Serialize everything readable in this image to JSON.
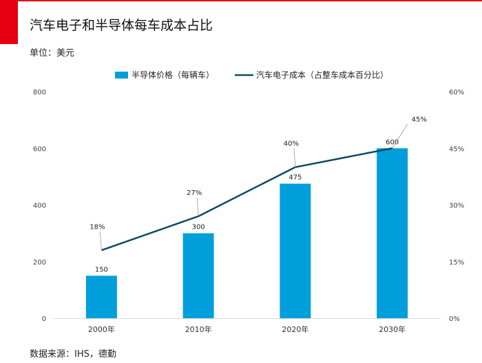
{
  "header": {
    "title": "汽车电子和半导体每车成本占比",
    "unit": "单位：美元",
    "accent_color": "#e60012"
  },
  "footer": {
    "source": "数据来源：IHS，德勤"
  },
  "chart_data": {
    "type": "bar",
    "categories": [
      "2000年",
      "2010年",
      "2020年",
      "2030年"
    ],
    "series": [
      {
        "name": "半导体价格（每辆车）",
        "type": "bar",
        "axis": "left",
        "values": [
          150,
          300,
          475,
          600
        ],
        "labels": [
          "150",
          "300",
          "475",
          "600"
        ],
        "color": "#009fdb"
      },
      {
        "name": "汽车电子成本（占整车成本百分比）",
        "type": "line",
        "axis": "right",
        "values": [
          18,
          27,
          40,
          45
        ],
        "labels": [
          "18%",
          "27%",
          "40%",
          "45%"
        ],
        "color": "#0d4a63"
      }
    ],
    "y_left": {
      "ylim": [
        0,
        800
      ],
      "ticks": [
        "0",
        "200",
        "400",
        "600",
        "800"
      ],
      "values": [
        0,
        200,
        400,
        600,
        800
      ]
    },
    "y_right": {
      "ylim": [
        0,
        60
      ],
      "ticks": [
        "0%",
        "15%",
        "30%",
        "45%",
        "60%"
      ],
      "values": [
        0,
        15,
        30,
        45,
        60
      ]
    },
    "grid": false,
    "legend": "top"
  }
}
